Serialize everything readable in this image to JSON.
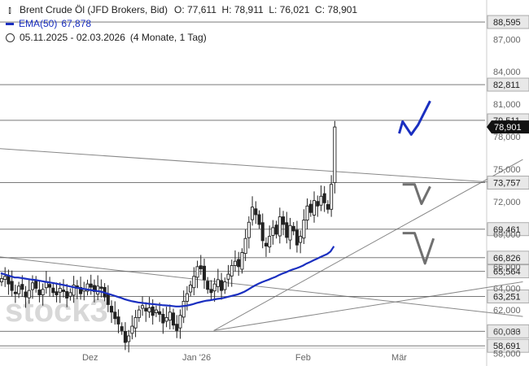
{
  "legend": {
    "instrument": "Brent Crude Öl (JFD Brokers, Bid)",
    "ohlc": "O: 77,611  H: 78,911  L: 76,021  C: 78,901",
    "ema_label": "EMA(50)",
    "ema_value": "67,878",
    "range": "05.11.2025 - 02.03.2026",
    "period": "(4 Monate, 1 Tag)"
  },
  "watermark": "stock3",
  "colors": {
    "ema": "#1a2fc0",
    "forecast_up": "#1a2fc0",
    "forecast_down": "#707070",
    "candle": "#222222"
  },
  "chart_data": {
    "type": "candlestick",
    "title": "Brent Crude Öl (JFD Brokers, Bid)",
    "x_ticks": [
      {
        "label": "Dez",
        "day": 26
      },
      {
        "label": "Jan '26",
        "day": 57
      },
      {
        "label": "Feb",
        "day": 88
      },
      {
        "label": "Mär",
        "day": 116
      }
    ],
    "y_ticks": [
      "87,000",
      "84,000",
      "81,000",
      "78,000",
      "75,000",
      "72,000",
      "69,000",
      "66,000",
      "64,000",
      "62,000",
      "60,000",
      "58,000"
    ],
    "y_tick_values": [
      87,
      84,
      81,
      78,
      75,
      72,
      69,
      66,
      64,
      62,
      60,
      58
    ],
    "ylim": [
      57.5,
      89.5
    ],
    "levels": [
      {
        "value": 88.595,
        "label": "88,595"
      },
      {
        "value": 82.811,
        "label": "82,811"
      },
      {
        "value": 79.511,
        "label": "79,511"
      },
      {
        "value": 73.757,
        "label": "73,757"
      },
      {
        "value": 69.461,
        "label": "69,461"
      },
      {
        "value": 66.826,
        "label": "66,826"
      },
      {
        "value": 65.564,
        "label": "65,564"
      },
      {
        "value": 63.251,
        "label": "63,251"
      },
      {
        "value": 60.033,
        "label": "60,033"
      },
      {
        "value": 58.691,
        "label": "58,691"
      }
    ],
    "current_price": {
      "value": 78.901,
      "label": "78,901"
    },
    "candles_close": [
      64.9,
      65.1,
      64.4,
      63.8,
      63.5,
      64.2,
      63.9,
      63.2,
      63.8,
      64.5,
      64.0,
      63.4,
      63.9,
      64.6,
      64.1,
      63.6,
      63.4,
      64.0,
      63.7,
      63.1,
      63.6,
      64.3,
      64.0,
      63.5,
      63.9,
      64.4,
      64.1,
      63.7,
      64.2,
      64.0,
      63.2,
      62.5,
      61.8,
      61.2,
      60.7,
      60.1,
      59.0,
      59.6,
      60.5,
      61.3,
      62.0,
      62.4,
      61.9,
      62.2,
      61.5,
      62.0,
      61.6,
      60.8,
      61.3,
      61.8,
      60.6,
      60.1,
      61.5,
      62.8,
      63.5,
      64.3,
      65.1,
      66.0,
      65.8,
      64.8,
      63.9,
      63.6,
      64.4,
      64.8,
      63.8,
      64.6,
      65.3,
      66.1,
      66.5,
      66.0,
      67.3,
      68.6,
      70.1,
      71.5,
      70.8,
      69.9,
      68.4,
      67.9,
      68.8,
      69.6,
      69.0,
      70.6,
      69.9,
      68.7,
      69.8,
      69.3,
      68.0,
      68.8,
      70.3,
      71.6,
      71.0,
      72.1,
      71.6,
      72.5,
      71.9,
      71.3,
      73.6,
      78.9
    ],
    "ema50": [
      65.4,
      65.3,
      65.2,
      65.1,
      65.0,
      65.0,
      64.95,
      64.9,
      64.85,
      64.8,
      64.78,
      64.72,
      64.66,
      64.6,
      64.55,
      64.5,
      64.44,
      64.38,
      64.32,
      64.25,
      64.18,
      64.12,
      64.06,
      64.0,
      63.95,
      63.9,
      63.85,
      63.8,
      63.75,
      63.7,
      63.62,
      63.52,
      63.42,
      63.32,
      63.22,
      63.12,
      63.0,
      62.9,
      62.82,
      62.76,
      62.7,
      62.66,
      62.62,
      62.58,
      62.55,
      62.52,
      62.48,
      62.44,
      62.42,
      62.4,
      62.36,
      62.32,
      62.32,
      62.35,
      62.4,
      62.46,
      62.54,
      62.64,
      62.72,
      62.8,
      62.86,
      62.9,
      62.96,
      63.02,
      63.06,
      63.12,
      63.2,
      63.28,
      63.36,
      63.44,
      63.56,
      63.7,
      63.88,
      64.08,
      64.26,
      64.42,
      64.56,
      64.68,
      64.8,
      64.94,
      65.06,
      65.22,
      65.36,
      65.48,
      65.62,
      65.74,
      65.84,
      65.96,
      66.1,
      66.28,
      66.42,
      66.58,
      66.72,
      66.88,
      67.02,
      67.16,
      67.4,
      67.878
    ],
    "forecast_up": [
      [
        116,
        78.3
      ],
      [
        117,
        79.4
      ],
      [
        119.5,
        78.2
      ],
      [
        121.5,
        79.1
      ],
      [
        125,
        81.3
      ]
    ],
    "forecast_down_1": [
      [
        117,
        73.6
      ],
      [
        120.5,
        73.6
      ],
      [
        122.5,
        71.8
      ],
      [
        125,
        73.4
      ]
    ],
    "forecast_down_2": [
      [
        117,
        69.1
      ],
      [
        120.5,
        69.1
      ],
      [
        123.5,
        66.3
      ],
      [
        126,
        68.6
      ]
    ],
    "trendlines": [
      {
        "from": [
          -28,
          77.5
        ],
        "to": [
          152,
          73.6
        ]
      },
      {
        "from": [
          -28,
          67.9
        ],
        "to": [
          152,
          61.4
        ]
      },
      {
        "from": [
          62,
          60.1
        ],
        "to": [
          152,
          75.9
        ]
      },
      {
        "from": [
          62,
          60.1
        ],
        "to": [
          152,
          64.6
        ]
      }
    ]
  }
}
